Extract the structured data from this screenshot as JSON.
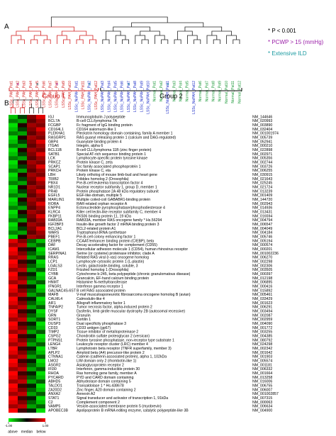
{
  "panel_a": {
    "label": "A",
    "legend": [
      {
        "text": "* P < 0.001",
        "color": "#000000"
      },
      {
        "text": "* PCWP > 15 (mmHg)",
        "color": "#9b1fa8"
      },
      {
        "text": "* Extensive ILD",
        "color": "#1a9aa0"
      }
    ],
    "samples": [
      {
        "label": "LSSc_PAH_Pat1",
        "color": "#d21f1f"
      },
      {
        "label": "LSSc_PAH_Pat2",
        "color": "#d21f1f"
      },
      {
        "label": "LSSc_PAH_Pat3",
        "color": "#d21f1f"
      },
      {
        "label": "LSSc_PAH_Pat4",
        "color": "#d21f1f"
      },
      {
        "label": "LSSc_PAH_Pat5",
        "color": "#d21f1f"
      },
      {
        "label": "LSSc_PAH_Pat6",
        "color": "#d21f1f"
      },
      {
        "label": "LSSc_PAH_Pat7",
        "color": "#d21f1f"
      },
      {
        "label": "LSSc_PAH_Pat8",
        "color": "#d21f1f"
      },
      {
        "label": "LSSc_PAH_Pat9",
        "color": "#d21f1f"
      },
      {
        "label": "LSSc_PAH_Pat10",
        "color": "#d21f1f"
      },
      {
        "label": "LSSc_NoPAH_Pat1",
        "color": "#1f2fc8"
      },
      {
        "label": "LSSc_PAH_Pat11",
        "color": "#d21f1f"
      },
      {
        "label": "LSSc_NoPAH_Pat2",
        "color": "#1f2fc8"
      },
      {
        "label": "LSSc_PAH_Pat12",
        "color": "#d21f1f"
      },
      {
        "label": "LSSc_NoPAH_Pat3",
        "color": "#1f2fc8"
      },
      {
        "label": "LSSc_NoPAH_Pat4",
        "color": "#1f2fc8"
      },
      {
        "label": "LSSc_NoPAH_Pat5",
        "color": "#1f2fc8"
      },
      {
        "label": "LSSc_NoPAH_Pat6",
        "color": "#1f2fc8"
      },
      {
        "label": "LSSc_NoPAH_Pat7",
        "color": "#1f2fc8"
      },
      {
        "label": "LSSc_NoPAH_Pat8",
        "color": "#1f2fc8"
      },
      {
        "label": "LSSc_NoPAH_Pat9",
        "color": "#1f2fc8"
      },
      {
        "label": "LSSc_NoPAH_Pat10",
        "color": "#1f2fc8"
      },
      {
        "label": "Normal_Pat1",
        "color": "#1e9a3a"
      },
      {
        "label": "Normal_Pat2",
        "color": "#1e9a3a"
      },
      {
        "label": "LSSc_NoPAH_Pat11",
        "color": "#1f2fc8"
      },
      {
        "label": "Normal_Pat3",
        "color": "#1e9a3a"
      },
      {
        "label": "Normal_Pat4",
        "color": "#1e9a3a"
      },
      {
        "label": "Normal_Pat5",
        "color": "#1e9a3a"
      },
      {
        "label": "LSSc_NoPAH_Pat12",
        "color": "#1f2fc8"
      },
      {
        "label": "Normal_Pat6",
        "color": "#1e9a3a"
      },
      {
        "label": "Normal_Pat7",
        "color": "#1e9a3a"
      },
      {
        "label": "Normal_Pat8",
        "color": "#1e9a3a"
      },
      {
        "label": "Normal_Pat9",
        "color": "#1e9a3a"
      },
      {
        "label": "Normal_Pat10",
        "color": "#1e9a3a"
      },
      {
        "label": "Normal_Pat11",
        "color": "#1e9a3a"
      },
      {
        "label": "Normal_Pat12",
        "color": "#1e9a3a"
      }
    ],
    "stars": [
      {
        "sample": 1,
        "text": "*",
        "color": "#9b1fa8"
      },
      {
        "sample": 4,
        "text": "*",
        "color": "#1a9aa0"
      },
      {
        "sample": 7,
        "text": "*",
        "color": "#9b1fa8"
      },
      {
        "sample": 12,
        "text": "*",
        "color": "#1a9aa0"
      },
      {
        "sample": 18,
        "text": "*",
        "color": "#1a9aa0"
      },
      {
        "sample": 24,
        "text": "*",
        "color": "#1a9aa0"
      }
    ],
    "groups": [
      {
        "text": "Group 1",
        "color": "#d21f1f",
        "from": 0,
        "to": 14
      },
      {
        "text": "Group 2",
        "color": "#000000",
        "from": 14,
        "to": 36
      }
    ]
  },
  "panel_b": {
    "label": "B",
    "genes": [
      [
        "IGJ",
        "Immunoglobulin J polypeptide",
        "NM_144646"
      ],
      [
        "BCL7A",
        "B-cell CLL/lymphoma 7A",
        "NM_020993"
      ],
      [
        "FCGBP",
        "Fc fragment of IgG binding protein",
        "NM_003890"
      ],
      [
        "CD164L1",
        "CD164 sialomucin-like 1",
        "NM_032404"
      ],
      [
        "PLEKHA1",
        "Pleckstrin homology domain containing, family A member 1",
        "NM_001001974"
      ],
      [
        "RASGRP1",
        "RAS guanyl releasing protein 1 (calcium and DAG-regulated)",
        "NM_005739"
      ],
      [
        "GBP4",
        "Guanylate binding protein 4",
        "NM_052941"
      ],
      [
        "ITGA6",
        "Integrin, alpha 6",
        "NM_000210"
      ],
      [
        "BCL11B",
        "B-cell CLL/lymphoma 11B (zinc finger protein)",
        "NM_022898"
      ],
      [
        "SATB1",
        "Special AT-rich sequence binding protein 1",
        "NM_002971"
      ],
      [
        "LCK",
        "Lymphocyte-specific protein tyrosine kinase",
        "NM_005356"
      ],
      [
        "PRKCZ",
        "Protein kinase C, zeta",
        "NM_002744"
      ],
      [
        "SCAP1",
        "Src family associated phosphoprotein 1",
        "NM_003726"
      ],
      [
        "PRKCH",
        "Protein kinase C, eta",
        "NM_006255"
      ],
      [
        "LBH",
        "Likely ortholog of mouse limb-bud and heart gene",
        "NM_030915"
      ],
      [
        "TRIB2",
        "Tribbles homolog 2 (Drosophila)",
        "NM_021643"
      ],
      [
        "PBX4",
        "Pre-B-cell leukemia transcription factor 4",
        "NM_025245"
      ],
      [
        "NR1D1",
        "Nuclear receptor subfamily 1, group D, member 1",
        "NM_021724"
      ],
      [
        "PR48",
        "Protein phosphatase 2A 48 kDa regulatory subunit",
        "NM_013239"
      ],
      [
        "EGFL5",
        "EGF-like-domain, multiple 5",
        "NM_001409"
      ],
      [
        "MARLIN1",
        "Multiple coiled-coil GABABR1-binding protein",
        "NM_144720"
      ],
      [
        "RORA",
        "RAR-related orphan receptor A",
        "NM_002943"
      ],
      [
        "ENPP4",
        "Ectonucleotide pyrophosphatase/phosphodiesterase 4",
        "NM_014936"
      ],
      [
        "KLRC4",
        "Killer cell lectin-like receptor subfamily C, member 4",
        "NM_013431"
      ],
      [
        "FKBP11",
        "FK506 binding protein 11, 19 kDa",
        "NM_016594"
      ],
      [
        "RAB33A",
        "RAB33A, member RAS oncogene family * Hs.56294",
        "NM_004794"
      ],
      [
        "IGF2BP3",
        "Insulin-like growth factor 2 mRNA binding protein 3",
        "NM_006547"
      ],
      [
        "BCL2A1",
        "BCL2-related protein A1",
        "NM_004049"
      ],
      [
        "WARS",
        "Tryptophanyl-tRNA synthetase",
        "NM_004184"
      ],
      [
        "PBEF1",
        "Pre-B-cell colony enhancing factor 1",
        "NM_005746"
      ],
      [
        "CEBPB",
        "CCAAT/enhancer binding protein (C/EBP), beta",
        "NM_005194"
      ],
      [
        "DAF",
        "Decay accelerating factor for complement (CD55)",
        "NM_000574"
      ],
      [
        "ICAM1",
        "Intercellular adhesion molecule 1 (CD54), human rhinovirus receptor",
        "NM_000201"
      ],
      [
        "SERPINA1",
        "Serine (or cysteine) proteinase inhibitor, clade A",
        "NM_001002236"
      ],
      [
        "RRAS",
        "Related RAS viral (r-ras) oncogene homolog",
        "NM_006270"
      ],
      [
        "LCP1",
        "Lymphocyte cytosolic protein 1 (L-plastin)",
        "NM_002298"
      ],
      [
        "LGALS3",
        "Lectin, galactoside-binding, soluble, 3",
        "NM_002306"
      ],
      [
        "FZD1",
        "Frizzled homolog 1 (Drosophila)",
        "NM_003505"
      ],
      [
        "CYBB",
        "Cytochrome b-245, beta polypeptide (chronic granulomatous disease)",
        "NM_000397"
      ],
      [
        "GCA",
        "Grancalcin, EF-hand calcium binding protein",
        "NM_012198"
      ],
      [
        "HNMT",
        "Histamine N-methyltransferase",
        "NM_006895"
      ],
      [
        "IFNGR1",
        "Interferon gamma receptor 1",
        "NM_000416"
      ],
      [
        "GALNAC4S-6ST",
        "B cell RAG associated protein",
        "NM_015892"
      ],
      [
        "MAFB",
        "V-maf musculoaponeurotic fibrosarcoma oncogene homolog B (avian)",
        "NM_005461"
      ],
      [
        "CALML4",
        "Calmodulin-like 4",
        "NM_033429"
      ],
      [
        "AIF1",
        "Allograft inflammatory factor 1",
        "NM_001623"
      ],
      [
        "TNFAIP2",
        "Tumor necrosis factor, alpha-induced protein 2",
        "NM_006291"
      ],
      [
        "DYSF",
        "Dysferlin, limb girdle muscular dystrophy 2B (autosomal recessive)",
        "NM_003494"
      ],
      [
        "GRN",
        "Granulin",
        "NM_002087"
      ],
      [
        "SORT1",
        "Sortilin 1",
        "NM_002959"
      ],
      [
        "DUSP3",
        "Dual specificity phosphatase 3",
        "NM_004090"
      ],
      [
        "CD33",
        "CD33 antigen (gp67)",
        "NM_001772"
      ],
      [
        "TIMP2",
        "Tissue inhibitor of metalloproteinase 2",
        "NM_003255"
      ],
      [
        "CSPG2",
        "Chondroitin sulfate proteoglycan 2 (versican)",
        "NM_004385"
      ],
      [
        "PTPNS1",
        "Protein tyrosine phosphatase, non-receptor type substrate 1",
        "NM_080792"
      ],
      [
        "LENG4",
        "Leukocyte receptor cluster (LRC) member 4",
        "NM_024298"
      ],
      [
        "LTBR",
        "Lymphotoxin beta receptor (TNFR superfamily, member 3)",
        "NM_002342"
      ],
      [
        "APLP2",
        "Amyloid beta (A4) precursor-like protein 2",
        "NM_001642"
      ],
      [
        "CTNNA1",
        "Catenin (cadherin-associated protein), alpha 1, 102kDa",
        "NM_001903"
      ],
      [
        "LMO2",
        "LIM domain only 2 (rhombotin-like 1)",
        "NM_005574"
      ],
      [
        "ASGR2",
        "Asialoglycoprotein receptor 2",
        "NM_001181"
      ],
      [
        "IFI30",
        "Interferon, gamma-inducible protein 30",
        "NM_006332"
      ],
      [
        "RHOA",
        "Ras homolog gene family, member A",
        "NM_001664"
      ],
      [
        "PYCARD",
        "PYD and CARD domain containing",
        "NM_013258"
      ],
      [
        "ABHD5",
        "Abhydrolase domain containing 5",
        "NM_016006"
      ],
      [
        "TALDO1",
        "Transaldolase 1 * Hs.438678",
        "NM_006755"
      ],
      [
        "ZA20D2",
        "Zinc finger, A20 domain containing 2",
        "NM_006007"
      ],
      [
        "ANXA2",
        "Annexin A2",
        "NM_001002857"
      ],
      [
        "STAT1",
        "Signal transducer and activator of transcription 1, 91kDa",
        "NM_007315"
      ],
      [
        "C2",
        "Complement component 2",
        "NM_000063"
      ],
      [
        "VAMP5",
        "Vesicle-associated membrane protein 5 (myobrevin)",
        "NM_006634"
      ],
      [
        "APOBEC3B",
        "Apolipoprotein B mRNA editing enzyme, catalytic polypeptide-like 3B",
        "NM_004900"
      ]
    ],
    "heatmap": [
      [
        -0.6,
        -0.2,
        0.4,
        0.7
      ],
      [
        -0.4,
        -0.5,
        0.3,
        0.5
      ],
      [
        -0.7,
        0.1,
        0.5,
        0.4
      ],
      [
        -0.6,
        -0.2,
        0.4,
        0.7
      ],
      [
        -0.4,
        -0.5,
        0.3,
        0.5
      ],
      [
        -0.7,
        0.1,
        0.5,
        0.4
      ],
      [
        -0.6,
        -0.2,
        0.4,
        0.7
      ],
      [
        -0.4,
        -0.5,
        0.3,
        0.5
      ],
      [
        -0.7,
        0.1,
        0.5,
        0.4
      ],
      [
        -0.6,
        -0.2,
        0.4,
        0.7
      ],
      [
        -0.4,
        -0.5,
        0.3,
        0.5
      ],
      [
        -0.7,
        0.1,
        0.5,
        0.4
      ],
      [
        -0.6,
        -0.2,
        0.4,
        0.7
      ],
      [
        -0.4,
        -0.5,
        0.3,
        0.5
      ],
      [
        -0.7,
        0.1,
        0.5,
        0.4
      ],
      [
        -0.6,
        -0.2,
        0.4,
        0.7
      ],
      [
        -0.4,
        -0.5,
        0.3,
        0.5
      ],
      [
        -0.7,
        0.1,
        0.5,
        0.4
      ],
      [
        -0.6,
        -0.2,
        0.4,
        0.7
      ],
      [
        -0.4,
        -0.5,
        0.3,
        0.5
      ],
      [
        -0.7,
        0.1,
        0.5,
        0.4
      ],
      [
        -0.6,
        -0.2,
        0.4,
        0.7
      ],
      [
        -0.4,
        -0.5,
        0.3,
        0.5
      ],
      [
        -0.7,
        0.1,
        0.5,
        0.4
      ],
      [
        -0.6,
        -0.2,
        0.4,
        0.7
      ],
      [
        -0.4,
        -0.5,
        0.3,
        0.5
      ],
      [
        -0.7,
        0.1,
        0.5,
        0.4
      ],
      [
        -0.6,
        -0.2,
        0.4,
        0.7
      ],
      [
        -0.4,
        -0.5,
        0.3,
        0.5
      ],
      [
        -0.7,
        0.1,
        0.5,
        0.4
      ],
      [
        0.7,
        0.4,
        -0.3,
        -0.6
      ],
      [
        0.5,
        0.6,
        -0.5,
        -0.3
      ],
      [
        0.8,
        0.2,
        -0.1,
        -0.7
      ],
      [
        0.7,
        0.4,
        -0.3,
        -0.6
      ],
      [
        0.5,
        0.6,
        -0.5,
        -0.3
      ],
      [
        0.8,
        0.2,
        -0.1,
        -0.7
      ],
      [
        0.7,
        0.4,
        -0.3,
        -0.6
      ],
      [
        0.5,
        0.6,
        -0.5,
        -0.3
      ],
      [
        0.8,
        0.2,
        -0.1,
        -0.7
      ],
      [
        0.7,
        0.4,
        -0.3,
        -0.6
      ],
      [
        0.5,
        0.6,
        -0.5,
        -0.3
      ],
      [
        0.8,
        0.2,
        -0.1,
        -0.7
      ],
      [
        0.7,
        0.4,
        -0.3,
        -0.6
      ],
      [
        0.5,
        0.6,
        -0.5,
        -0.3
      ],
      [
        0.8,
        0.2,
        -0.1,
        -0.7
      ],
      [
        0.7,
        0.4,
        -0.3,
        -0.6
      ],
      [
        0.5,
        0.6,
        -0.5,
        -0.3
      ],
      [
        0.8,
        0.2,
        -0.1,
        -0.7
      ],
      [
        0.7,
        0.4,
        -0.3,
        -0.6
      ],
      [
        0.5,
        0.6,
        -0.5,
        -0.3
      ],
      [
        0.8,
        0.2,
        -0.1,
        -0.7
      ],
      [
        0.7,
        0.4,
        -0.3,
        -0.6
      ],
      [
        0.5,
        0.6,
        -0.5,
        -0.3
      ],
      [
        0.8,
        0.2,
        -0.1,
        -0.7
      ],
      [
        0.7,
        0.4,
        -0.3,
        -0.6
      ],
      [
        0.5,
        0.6,
        -0.5,
        -0.3
      ],
      [
        0.8,
        0.2,
        -0.1,
        -0.7
      ],
      [
        0.7,
        0.4,
        -0.3,
        -0.6
      ],
      [
        0.5,
        0.6,
        -0.5,
        -0.3
      ],
      [
        0.8,
        0.2,
        -0.1,
        -0.7
      ],
      [
        0.7,
        0.4,
        -0.3,
        -0.6
      ],
      [
        0.5,
        0.6,
        -0.5,
        -0.3
      ],
      [
        0.8,
        0.2,
        -0.1,
        -0.7
      ],
      [
        0.7,
        0.4,
        -0.3,
        -0.6
      ],
      [
        0.5,
        0.6,
        -0.5,
        -0.3
      ],
      [
        0.8,
        0.2,
        -0.1,
        -0.7
      ],
      [
        0.7,
        0.4,
        -0.3,
        -0.6
      ],
      [
        0.5,
        0.6,
        -0.5,
        -0.3
      ],
      [
        0.8,
        0.2,
        -0.1,
        -0.7
      ],
      [
        0.7,
        0.4,
        -0.3,
        -0.6
      ],
      [
        0.5,
        0.6,
        -0.5,
        -0.3
      ],
      [
        0.8,
        0.2,
        -0.1,
        -0.7
      ]
    ],
    "colorbar": {
      "ticks": [
        {
          "value": -1,
          "label": "-1.00"
        },
        {
          "value": 1,
          "label": "1.00"
        }
      ],
      "labels": [
        "above",
        "median",
        "below"
      ]
    }
  }
}
